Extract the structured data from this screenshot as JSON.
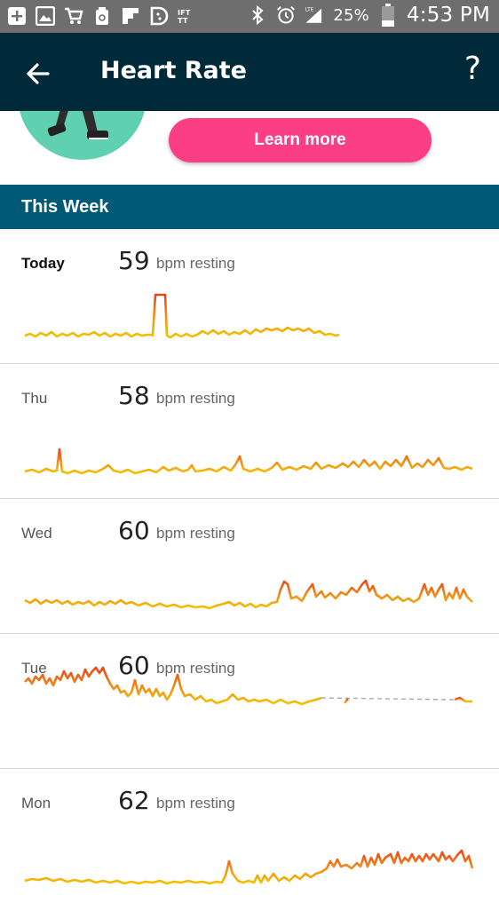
{
  "status_bar": {
    "battery_percent": "25%",
    "time": "4:53 PM",
    "network": "LTE"
  },
  "app_bar": {
    "title": "Heart Rate",
    "help_label": "?"
  },
  "promo": {
    "button_label": "Learn more"
  },
  "section": {
    "title": "This Week"
  },
  "days": [
    {
      "label": "Today",
      "bpm": "59",
      "unit": "bpm resting"
    },
    {
      "label": "Thu",
      "bpm": "58",
      "unit": "bpm resting"
    },
    {
      "label": "Wed",
      "bpm": "60",
      "unit": "bpm resting"
    },
    {
      "label": "Tue",
      "bpm": "60",
      "unit": "bpm resting"
    },
    {
      "label": "Mon",
      "bpm": "62",
      "unit": "bpm resting"
    }
  ],
  "colors": {
    "app_bar": "#002a3a",
    "section_header": "#005a76",
    "learn_more_button": "#fc3f84",
    "status_bar": "#6e6e6e",
    "sparkline_low": "#f2c200",
    "sparkline_high": "#e7461b"
  }
}
